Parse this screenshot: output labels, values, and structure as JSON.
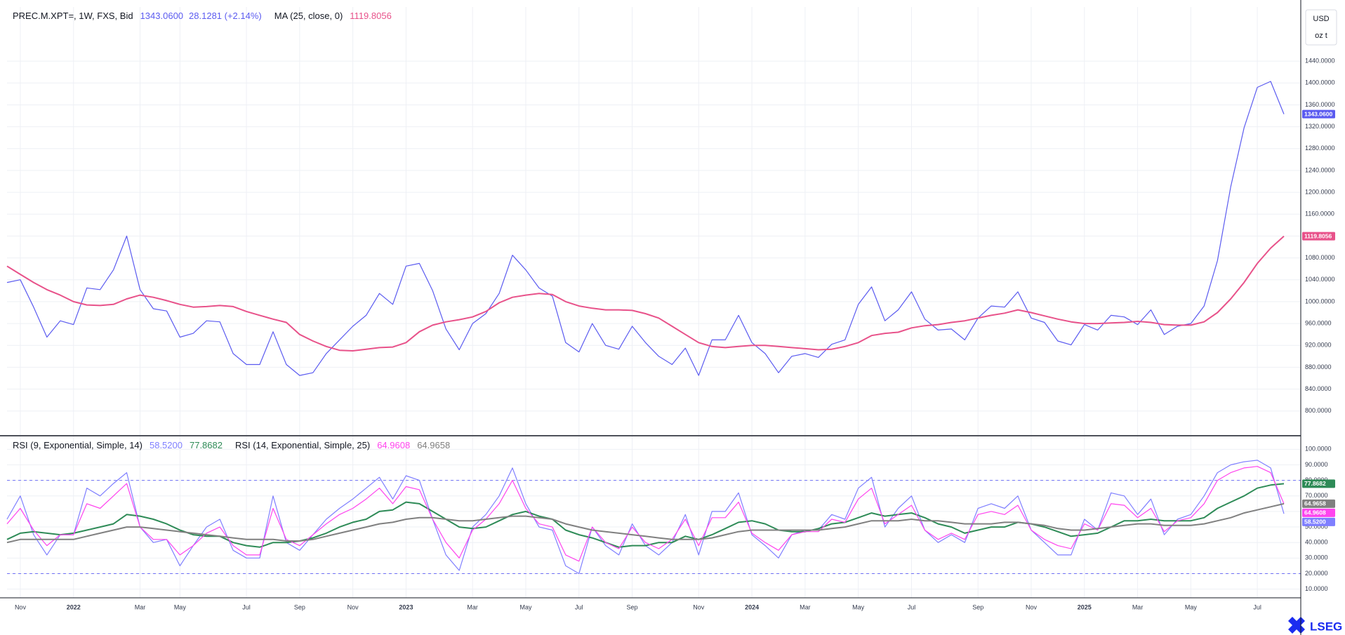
{
  "chart_data": [
    {
      "type": "line",
      "title": "PREC.M.XPT=, 1W, FXS, Bid",
      "change": "28.1281 (+2.14%)",
      "unit": "USD",
      "unit2": "oz t",
      "categories": [
        null,
        "Nov",
        null,
        null,
        null,
        "2022",
        null,
        null,
        null,
        null,
        "Mar",
        null,
        null,
        "May",
        null,
        null,
        null,
        null,
        "Jul",
        null,
        null,
        null,
        "Sep",
        null,
        null,
        null,
        "Nov",
        null,
        null,
        null,
        "2023",
        null,
        null,
        null,
        null,
        "Mar",
        null,
        null,
        null,
        "May",
        null,
        null,
        null,
        "Jul",
        null,
        null,
        null,
        "Sep",
        null,
        null,
        null,
        null,
        "Nov",
        null,
        null,
        null,
        "2024",
        null,
        null,
        null,
        "Mar",
        null,
        null,
        null,
        "May",
        null,
        null,
        null,
        "Jul",
        null,
        null,
        null,
        null,
        "Sep",
        null,
        null,
        null,
        "Nov",
        null,
        null,
        null,
        "2025",
        null,
        null,
        null,
        "Mar",
        null,
        null,
        null,
        "May",
        null,
        null,
        null,
        null,
        "Jul",
        null,
        null
      ],
      "series": [
        {
          "color": "#5b5bf0",
          "last_label": "1343.0600",
          "values": [
            1035,
            1040,
            990,
            935,
            965,
            958,
            1025,
            1022,
            1058,
            1120,
            1022,
            987,
            983,
            935,
            942,
            965,
            963,
            905,
            885,
            885,
            945,
            885,
            865,
            870,
            905,
            930,
            955,
            975,
            1015,
            995,
            1065,
            1070,
            1020,
            950,
            912,
            960,
            978,
            1015,
            1085,
            1058,
            1025,
            1010,
            925,
            908,
            960,
            920,
            913,
            955,
            925,
            900,
            885,
            915,
            865,
            930,
            930,
            975,
            925,
            905,
            870,
            900,
            905,
            898,
            922,
            930,
            995,
            1027,
            965,
            985,
            1018,
            968,
            948,
            950,
            930,
            970,
            992,
            990,
            1018,
            970,
            962,
            928,
            921,
            958,
            948,
            975,
            972,
            958,
            985,
            940,
            955,
            960,
            992,
            1075,
            1210,
            1318,
            1392,
            1403,
            1343.06
          ]
        },
        {
          "name": "MA (25, close, 0)",
          "color": "#e8528a",
          "last_label": "1119.8056",
          "values": [
            1065,
            1050,
            1035,
            1022,
            1012,
            1000,
            994,
            993,
            995,
            1005,
            1012,
            1008,
            1002,
            995,
            990,
            991,
            993,
            991,
            982,
            975,
            968,
            962,
            940,
            928,
            918,
            911,
            910,
            913,
            916,
            917,
            925,
            945,
            957,
            963,
            967,
            972,
            982,
            998,
            1008,
            1012,
            1015,
            1013,
            1000,
            992,
            988,
            985,
            985,
            984,
            978,
            970,
            955,
            940,
            925,
            918,
            916,
            918,
            920,
            920,
            918,
            916,
            914,
            912,
            913,
            918,
            925,
            938,
            942,
            944,
            952,
            956,
            958,
            962,
            965,
            970,
            975,
            979,
            985,
            980,
            974,
            968,
            963,
            960,
            960,
            961,
            962,
            964,
            962,
            958,
            957,
            957,
            963,
            980,
            1005,
            1035,
            1070,
            1098,
            1119.8056
          ]
        }
      ],
      "ylim": [
        756,
        1539
      ],
      "yticks": [
        {
          "value": 800,
          "label": "800.0000"
        },
        {
          "value": 840,
          "label": "840.0000"
        },
        {
          "value": 880,
          "label": "880.0000"
        },
        {
          "value": 920,
          "label": "920.0000"
        },
        {
          "value": 960,
          "label": "960.0000"
        },
        {
          "value": 1000,
          "label": "1000.0000"
        },
        {
          "value": 1040,
          "label": "1040.0000"
        },
        {
          "value": 1080,
          "label": "1080.0000"
        },
        {
          "value": 1120,
          "label": "1120.0000"
        },
        {
          "value": 1160,
          "label": "1160.0000"
        },
        {
          "value": 1200,
          "label": "1200.0000"
        },
        {
          "value": 1240,
          "label": "1240.0000"
        },
        {
          "value": 1280,
          "label": "1280.0000"
        },
        {
          "value": 1320,
          "label": "1320.0000"
        },
        {
          "value": 1360,
          "label": "1360.0000"
        },
        {
          "value": 1400,
          "label": "1400.0000"
        },
        {
          "value": 1440,
          "label": "1440.0000"
        }
      ],
      "grid": true
    },
    {
      "type": "line",
      "series": [
        {
          "name": "RSI (9, Exponential, Simple, 14)",
          "color": "#7f7fff",
          "last_label": "58.5200",
          "values": [
            55,
            70,
            45,
            32,
            45,
            45,
            75,
            70,
            78,
            85,
            50,
            40,
            42,
            25,
            38,
            50,
            55,
            35,
            30,
            30,
            70,
            40,
            35,
            45,
            55,
            62,
            68,
            75,
            82,
            68,
            83,
            80,
            55,
            32,
            22,
            50,
            58,
            70,
            88,
            65,
            50,
            48,
            25,
            20,
            50,
            38,
            32,
            52,
            38,
            32,
            40,
            58,
            32,
            60,
            60,
            72,
            45,
            38,
            30,
            45,
            48,
            48,
            58,
            55,
            75,
            82,
            50,
            62,
            70,
            48,
            40,
            45,
            40,
            62,
            65,
            62,
            70,
            48,
            40,
            32,
            32,
            55,
            48,
            72,
            70,
            58,
            68,
            45,
            55,
            58,
            70,
            85,
            90,
            92,
            93,
            88,
            58.52
          ]
        },
        {
          "color": "#2e8b57",
          "last_label": "77.8682",
          "values": [
            42,
            46,
            47,
            46,
            45,
            46,
            48,
            50,
            52,
            58,
            57,
            55,
            52,
            48,
            45,
            44,
            44,
            40,
            38,
            37,
            40,
            40,
            41,
            43,
            46,
            50,
            53,
            55,
            60,
            61,
            66,
            65,
            60,
            55,
            50,
            49,
            50,
            54,
            58,
            60,
            57,
            55,
            48,
            45,
            43,
            40,
            37,
            38,
            38,
            40,
            40,
            44,
            42,
            45,
            49,
            53,
            54,
            52,
            48,
            47,
            47,
            49,
            52,
            53,
            56,
            59,
            57,
            58,
            59,
            56,
            52,
            50,
            46,
            48,
            50,
            50,
            53,
            52,
            50,
            47,
            44,
            45,
            46,
            50,
            54,
            54,
            55,
            54,
            54,
            54,
            56,
            62,
            66,
            70,
            75,
            77,
            77.8682
          ]
        },
        {
          "name": "RSI (14, Exponential, Simple, 25)",
          "color": "#ff44ee",
          "last_label": "64.9608",
          "values": [
            52,
            62,
            48,
            38,
            45,
            45,
            65,
            62,
            70,
            78,
            50,
            42,
            42,
            32,
            38,
            46,
            50,
            38,
            32,
            32,
            62,
            42,
            38,
            45,
            52,
            58,
            62,
            68,
            75,
            65,
            76,
            74,
            55,
            40,
            30,
            48,
            55,
            65,
            80,
            62,
            52,
            50,
            32,
            28,
            50,
            40,
            36,
            50,
            40,
            36,
            42,
            55,
            38,
            56,
            56,
            66,
            46,
            40,
            35,
            45,
            47,
            47,
            55,
            53,
            68,
            75,
            52,
            58,
            64,
            48,
            42,
            46,
            42,
            58,
            60,
            58,
            64,
            48,
            42,
            38,
            36,
            52,
            48,
            65,
            64,
            56,
            62,
            47,
            54,
            56,
            65,
            80,
            85,
            88,
            89,
            85,
            64.9608
          ]
        },
        {
          "color": "#808080",
          "last_label": "64.9658",
          "values": [
            40,
            42,
            42,
            42,
            42,
            42,
            44,
            46,
            48,
            50,
            50,
            49,
            48,
            47,
            46,
            45,
            44,
            43,
            42,
            42,
            42,
            41,
            41,
            42,
            44,
            46,
            48,
            50,
            52,
            53,
            55,
            56,
            56,
            55,
            54,
            54,
            55,
            56,
            57,
            57,
            56,
            55,
            52,
            50,
            48,
            47,
            46,
            45,
            44,
            43,
            42,
            42,
            42,
            43,
            45,
            47,
            48,
            48,
            48,
            48,
            48,
            48,
            49,
            50,
            52,
            54,
            54,
            54,
            55,
            54,
            54,
            53,
            52,
            52,
            52,
            53,
            53,
            52,
            51,
            49,
            48,
            48,
            49,
            50,
            51,
            52,
            52,
            51,
            51,
            51,
            52,
            54,
            56,
            59,
            61,
            63,
            64.9658
          ]
        }
      ],
      "ylim": [
        4.4,
        108.3
      ],
      "yticks": [
        {
          "value": 10,
          "label": "10.0000"
        },
        {
          "value": 20,
          "label": "20.0000"
        },
        {
          "value": 30,
          "label": "30.0000"
        },
        {
          "value": 40,
          "label": "40.0000"
        },
        {
          "value": 50,
          "label": "50.0000"
        },
        {
          "value": 60,
          "label": "60.0000"
        },
        {
          "value": 70,
          "label": "70.0000"
        },
        {
          "value": 80,
          "label": "80.0000"
        },
        {
          "value": 90,
          "label": "90.0000"
        },
        {
          "value": 100,
          "label": "100.0000"
        }
      ],
      "hlines": [
        80,
        20
      ],
      "grid": true
    }
  ],
  "footer": {
    "brand": "LSEG"
  }
}
